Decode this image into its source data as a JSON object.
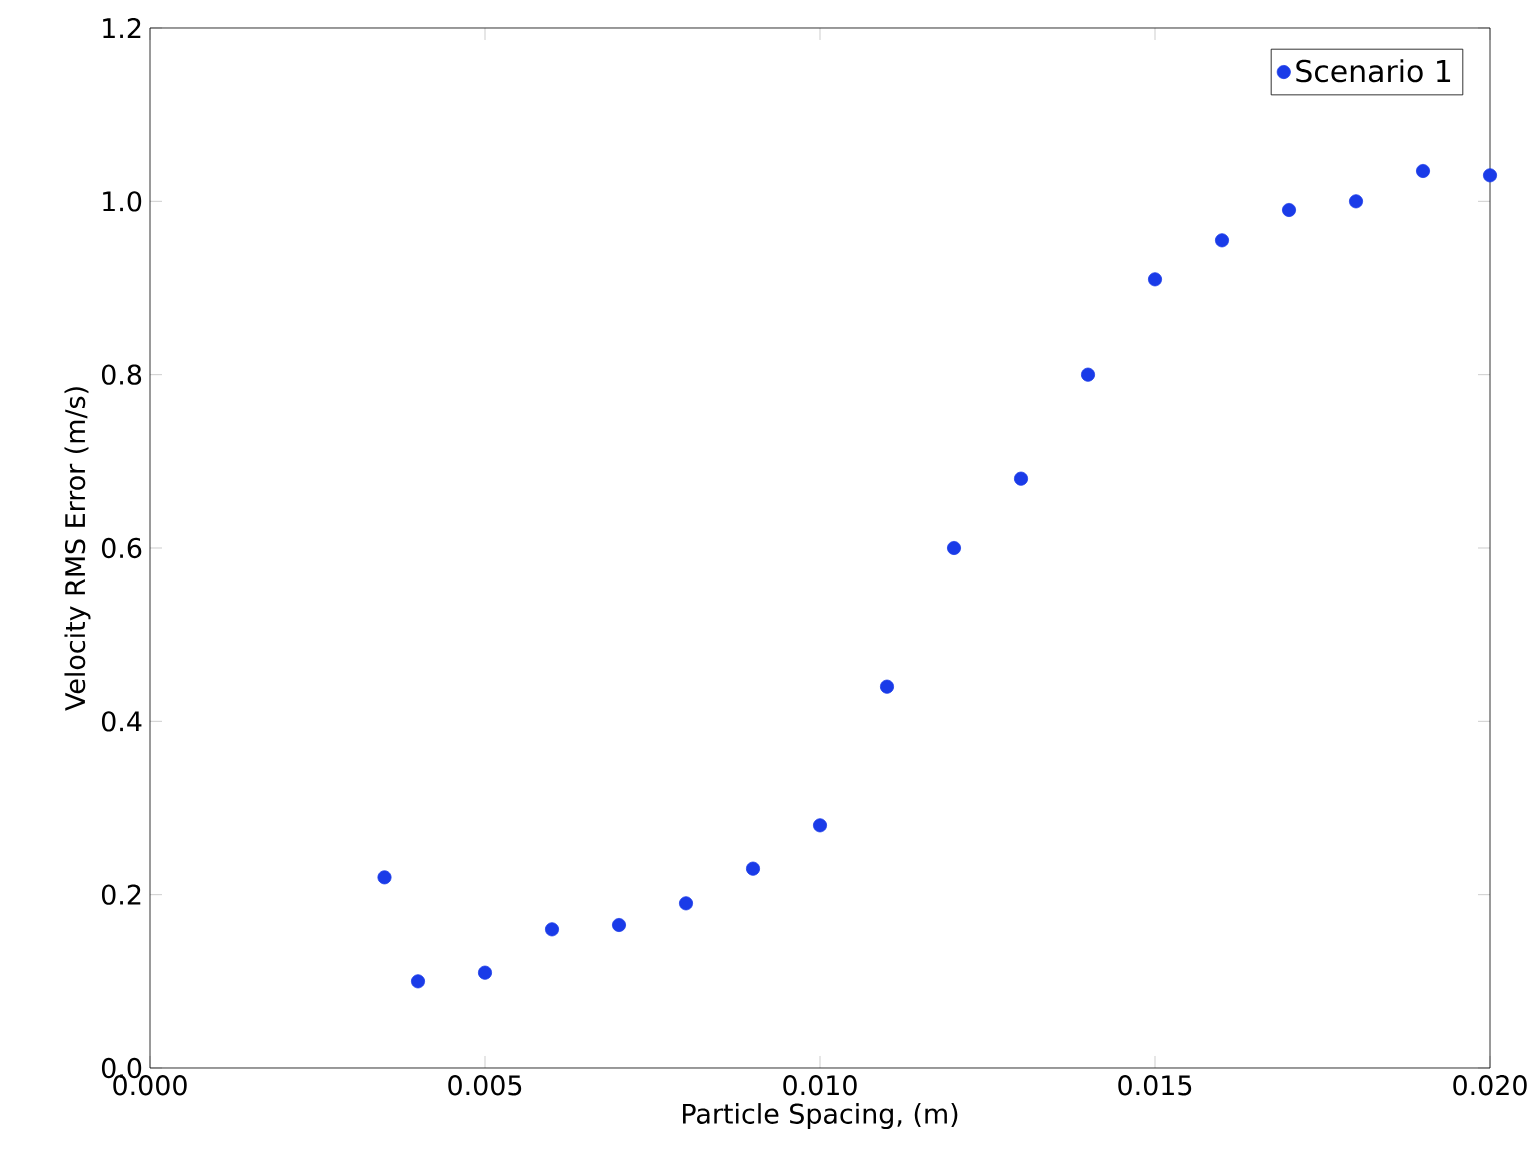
{
  "chart_data": {
    "type": "scatter",
    "xlabel": "Particle Spacing, (m)",
    "ylabel": "Velocity RMS Error (m/s)",
    "xlim": [
      0,
      0.02
    ],
    "ylim": [
      0,
      1.2
    ],
    "xticks": [
      {
        "value": 0,
        "label": "0.000"
      },
      {
        "value": 0.005,
        "label": "0.005"
      },
      {
        "value": 0.01,
        "label": "0.010"
      },
      {
        "value": 0.015,
        "label": "0.015"
      },
      {
        "value": 0.02,
        "label": "0.020"
      }
    ],
    "yticks": [
      {
        "value": 0,
        "label": "0.0"
      },
      {
        "value": 0.2,
        "label": "0.2"
      },
      {
        "value": 0.4,
        "label": "0.4"
      },
      {
        "value": 0.6,
        "label": "0.6"
      },
      {
        "value": 0.8,
        "label": "0.8"
      },
      {
        "value": 1.0,
        "label": "1.0"
      },
      {
        "value": 1.2,
        "label": "1.2"
      }
    ],
    "marker": "circle",
    "legend": "top right",
    "series": [
      {
        "name": "Scenario 1",
        "color": "#1a3be8",
        "x": [
          0.0035,
          0.004,
          0.005,
          0.006,
          0.007,
          0.008,
          0.009,
          0.01,
          0.011,
          0.012,
          0.013,
          0.014,
          0.015,
          0.016,
          0.017,
          0.018,
          0.019,
          0.02
        ],
        "values": [
          0.22,
          0.1,
          0.11,
          0.16,
          0.165,
          0.19,
          0.23,
          0.28,
          0.44,
          0.6,
          0.68,
          0.8,
          0.91,
          0.955,
          0.99,
          1.0,
          1.035,
          1.03
        ]
      }
    ]
  }
}
